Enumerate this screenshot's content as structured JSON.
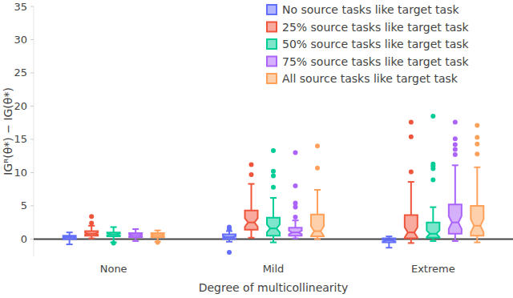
{
  "chart_data": {
    "type": "box",
    "y_label": "IGᴿ(θ*) − IG(θ*)",
    "x_label": "Degree of multicollinearity",
    "categories": [
      "None",
      "Mild",
      "Extreme"
    ],
    "ylim": [
      -2.6,
      35
    ],
    "yticks": [
      0,
      5,
      10,
      15,
      20,
      25,
      30,
      35
    ],
    "grid": false,
    "legend": "top-right",
    "series": [
      {
        "name": "No source tasks like target task",
        "color": "#636efa",
        "boxes": [
          {
            "min": -0.8,
            "q1": 0.0,
            "median": 0.3,
            "q3": 0.5,
            "max": 1.0,
            "outliers": []
          },
          {
            "min": -0.4,
            "q1": 0.0,
            "median": 0.3,
            "q3": 0.7,
            "max": 1.2,
            "outliers": [
              1.8,
              1.5,
              -2.0
            ]
          },
          {
            "min": -1.3,
            "q1": -0.5,
            "median": -0.2,
            "q3": 0.1,
            "max": 0.4,
            "outliers": []
          }
        ]
      },
      {
        "name": "25% source tasks like target task",
        "color": "#ef553b",
        "boxes": [
          {
            "min": 0.1,
            "q1": 0.5,
            "median": 0.8,
            "q3": 1.2,
            "max": 2.0,
            "outliers": [
              3.4,
              2.4
            ]
          },
          {
            "min": 0.2,
            "q1": 1.4,
            "median": 2.5,
            "q3": 4.3,
            "max": 8.3,
            "outliers": [
              9.7,
              11.2
            ]
          },
          {
            "min": -0.6,
            "q1": 0.1,
            "median": 1.0,
            "q3": 3.6,
            "max": 8.6,
            "outliers": [
              10.1,
              15.4,
              17.6
            ]
          }
        ]
      },
      {
        "name": "50% source tasks like target task",
        "color": "#00cc96",
        "boxes": [
          {
            "min": -0.5,
            "q1": 0.4,
            "median": 0.7,
            "q3": 1.0,
            "max": 1.8,
            "outliers": [
              -0.6
            ]
          },
          {
            "min": -0.5,
            "q1": 0.5,
            "median": 1.6,
            "q3": 3.2,
            "max": 6.2,
            "outliers": [
              7.8,
              9.5,
              10.2,
              13.3
            ]
          },
          {
            "min": -0.3,
            "q1": 0.2,
            "median": 0.8,
            "q3": 2.5,
            "max": 4.8,
            "outliers": [
              8.9,
              10.6,
              11.0,
              11.3,
              18.5
            ]
          }
        ]
      },
      {
        "name": "75% source tasks like target task",
        "color": "#ab63fa",
        "boxes": [
          {
            "min": -0.3,
            "q1": 0.3,
            "median": 0.6,
            "q3": 0.9,
            "max": 1.5,
            "outliers": []
          },
          {
            "min": 0.1,
            "q1": 0.5,
            "median": 1.0,
            "q3": 1.7,
            "max": 2.8,
            "outliers": [
              3.3,
              4.8,
              5.4,
              8.0,
              13.0
            ]
          },
          {
            "min": -0.3,
            "q1": 0.8,
            "median": 2.5,
            "q3": 5.2,
            "max": 11.1,
            "outliers": [
              12.7,
              13.5,
              14.2,
              15.1,
              17.6
            ]
          }
        ]
      },
      {
        "name": "All source tasks like target task",
        "color": "#ffa15a",
        "boxes": [
          {
            "min": -0.4,
            "q1": 0.3,
            "median": 0.6,
            "q3": 0.9,
            "max": 1.3,
            "outliers": [
              -0.5
            ]
          },
          {
            "min": 0.0,
            "q1": 0.4,
            "median": 1.2,
            "q3": 3.7,
            "max": 7.4,
            "outliers": [
              10.7,
              14.0
            ]
          },
          {
            "min": -0.5,
            "q1": 0.5,
            "median": 2.0,
            "q3": 5.0,
            "max": 10.8,
            "outliers": [
              12.8,
              14.3,
              15.3,
              17.1
            ]
          }
        ]
      }
    ]
  }
}
